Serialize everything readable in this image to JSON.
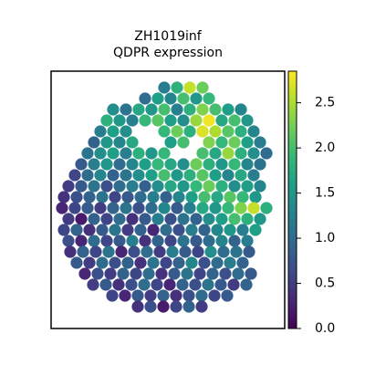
{
  "chart_data": {
    "type": "spatial_scatter",
    "title": [
      "ZH1019inf",
      "QDPR expression"
    ],
    "colormap": "viridis",
    "clim": [
      0,
      2.85
    ],
    "cticks": [
      {
        "value": 0,
        "label": "0.0"
      },
      {
        "value": 0.5,
        "label": "0.5"
      },
      {
        "value": 1,
        "label": "1.0"
      },
      {
        "value": 1.5,
        "label": "1.5"
      },
      {
        "value": 2,
        "label": "2.0"
      },
      {
        "value": 2.5,
        "label": "2.5"
      }
    ],
    "xlim": [
      0,
      256
    ],
    "ylim": [
      0,
      282
    ],
    "y_inverted": true,
    "x": [
      124,
      138,
      152,
      166,
      103,
      117,
      131,
      145,
      159,
      173,
      68,
      82,
      96,
      110,
      124,
      138,
      152,
      166,
      180,
      194,
      208,
      61,
      75,
      89,
      103,
      117,
      131,
      145,
      159,
      173,
      187,
      201,
      215,
      54,
      68,
      82,
      124,
      138,
      152,
      166,
      180,
      194,
      208,
      222,
      47,
      61,
      75,
      89,
      131,
      145,
      173,
      187,
      201,
      215,
      229,
      40,
      54,
      68,
      82,
      96,
      110,
      124,
      166,
      180,
      194,
      208,
      222,
      236,
      33,
      47,
      61,
      75,
      89,
      103,
      117,
      131,
      145,
      159,
      173,
      187,
      201,
      215,
      229,
      26,
      40,
      54,
      68,
      82,
      96,
      110,
      124,
      138,
      152,
      166,
      180,
      194,
      208,
      222,
      19,
      33,
      47,
      61,
      75,
      89,
      103,
      117,
      131,
      145,
      159,
      173,
      187,
      201,
      215,
      229,
      14,
      28,
      42,
      56,
      70,
      84,
      98,
      112,
      126,
      140,
      154,
      168,
      182,
      196,
      210,
      224,
      12,
      26,
      40,
      54,
      68,
      82,
      96,
      110,
      124,
      138,
      152,
      166,
      180,
      194,
      208,
      222,
      236,
      19,
      33,
      47,
      61,
      75,
      89,
      103,
      117,
      131,
      145,
      159,
      173,
      187,
      201,
      215,
      229,
      14,
      28,
      42,
      56,
      70,
      84,
      98,
      112,
      126,
      140,
      154,
      168,
      182,
      196,
      210,
      224,
      19,
      33,
      47,
      61,
      75,
      89,
      103,
      117,
      131,
      145,
      159,
      173,
      187,
      201,
      215,
      21,
      35,
      49,
      63,
      77,
      91,
      105,
      119,
      133,
      147,
      161,
      175,
      189,
      203,
      217,
      28,
      42,
      56,
      70,
      84,
      98,
      112,
      126,
      140,
      154,
      168,
      182,
      196,
      210,
      37,
      51,
      65,
      79,
      93,
      107,
      121,
      135,
      149,
      163,
      177,
      191,
      205,
      219,
      46,
      60,
      74,
      88,
      102,
      116,
      130,
      144,
      158,
      172,
      186,
      200,
      214,
      67,
      81,
      95,
      109,
      123,
      137,
      151,
      165,
      179,
      193,
      95,
      109,
      123,
      137,
      151,
      165
    ],
    "y": [
      18,
      18,
      18,
      18,
      30,
      30,
      30,
      30,
      30,
      30,
      42,
      42,
      42,
      42,
      42,
      42,
      42,
      42,
      42,
      42,
      42,
      54,
      54,
      54,
      54,
      54,
      54,
      54,
      54,
      54,
      54,
      54,
      54,
      66,
      66,
      66,
      66,
      66,
      66,
      66,
      66,
      66,
      66,
      66,
      78,
      78,
      78,
      78,
      78,
      78,
      78,
      78,
      78,
      78,
      78,
      90,
      90,
      90,
      90,
      90,
      90,
      90,
      90,
      90,
      90,
      90,
      90,
      90,
      102,
      102,
      102,
      102,
      102,
      102,
      102,
      102,
      102,
      102,
      102,
      102,
      102,
      102,
      102,
      114,
      114,
      114,
      114,
      114,
      114,
      114,
      114,
      114,
      114,
      114,
      114,
      114,
      114,
      114,
      126,
      126,
      126,
      126,
      126,
      126,
      126,
      126,
      126,
      126,
      126,
      126,
      126,
      126,
      126,
      126,
      138,
      138,
      138,
      138,
      138,
      138,
      138,
      138,
      138,
      138,
      138,
      138,
      138,
      138,
      138,
      138,
      150,
      150,
      150,
      150,
      150,
      150,
      150,
      150,
      150,
      150,
      150,
      150,
      150,
      150,
      150,
      150,
      150,
      162,
      162,
      162,
      162,
      162,
      162,
      162,
      162,
      162,
      162,
      162,
      162,
      162,
      162,
      162,
      162,
      174,
      174,
      174,
      174,
      174,
      174,
      174,
      174,
      174,
      174,
      174,
      174,
      174,
      174,
      174,
      174,
      186,
      186,
      186,
      186,
      186,
      186,
      186,
      186,
      186,
      186,
      186,
      186,
      186,
      186,
      186,
      198,
      198,
      198,
      198,
      198,
      198,
      198,
      198,
      198,
      198,
      198,
      198,
      198,
      198,
      198,
      210,
      210,
      210,
      210,
      210,
      210,
      210,
      210,
      210,
      210,
      210,
      210,
      210,
      210,
      222,
      222,
      222,
      222,
      222,
      222,
      222,
      222,
      222,
      222,
      222,
      222,
      222,
      222,
      234,
      234,
      234,
      234,
      234,
      234,
      234,
      234,
      234,
      234,
      234,
      234,
      234,
      246,
      246,
      246,
      246,
      246,
      246,
      246,
      246,
      246,
      246,
      258,
      258,
      258,
      258,
      258,
      258
    ],
    "values": [
      1.2,
      1.8,
      2.6,
      2.2,
      1.0,
      1.6,
      1.3,
      2.0,
      1.5,
      1.9,
      1.4,
      1.1,
      1.7,
      1.5,
      2.0,
      1.2,
      1.8,
      2.3,
      2.0,
      1.6,
      1.3,
      1.8,
      1.5,
      1.2,
      1.9,
      2.1,
      1.6,
      1.4,
      2.4,
      2.8,
      1.7,
      2.0,
      1.5,
      1.2,
      1.6,
      1.4,
      1.9,
      2.2,
      1.8,
      2.7,
      2.5,
      2.1,
      1.8,
      1.3,
      0.9,
      1.5,
      1.3,
      1.7,
      1.6,
      2.0,
      2.3,
      1.9,
      2.2,
      1.6,
      1.2,
      1.1,
      1.4,
      1.6,
      1.2,
      1.8,
      1.5,
      1.9,
      2.0,
      1.7,
      2.4,
      1.8,
      1.4,
      1.0,
      0.8,
      1.2,
      1.5,
      1.0,
      1.3,
      1.6,
      1.9,
      1.7,
      1.4,
      2.2,
      1.8,
      1.5,
      1.9,
      1.3,
      1.1,
      0.6,
      1.0,
      1.3,
      0.9,
      1.1,
      1.4,
      1.6,
      2.0,
      1.5,
      1.8,
      2.1,
      1.6,
      1.3,
      1.7,
      1.2,
      0.5,
      0.8,
      1.1,
      0.7,
      1.0,
      1.2,
      0.9,
      1.4,
      1.7,
      1.5,
      1.9,
      2.2,
      1.8,
      1.4,
      1.6,
      1.3,
      0.4,
      0.7,
      0.9,
      1.1,
      0.6,
      0.8,
      1.0,
      1.2,
      0.9,
      1.3,
      1.6,
      2.0,
      1.7,
      2.1,
      1.9,
      1.5,
      0.3,
      0.6,
      0.8,
      0.5,
      0.9,
      1.1,
      0.7,
      1.0,
      1.3,
      0.8,
      1.2,
      1.7,
      1.5,
      1.9,
      2.3,
      2.6,
      1.8,
      0.5,
      0.2,
      0.9,
      0.6,
      1.0,
      0.4,
      0.8,
      1.2,
      0.7,
      1.1,
      0.9,
      1.4,
      1.6,
      2.0,
      1.8,
      1.5,
      0.6,
      0.9,
      0.4,
      0.8,
      1.1,
      0.5,
      0.9,
      0.3,
      1.0,
      0.7,
      1.2,
      0.9,
      1.3,
      1.5,
      1.2,
      1.6,
      0.7,
      0.3,
      1.0,
      0.6,
      0.8,
      1.2,
      0.4,
      0.9,
      0.6,
      1.1,
      0.8,
      1.0,
      1.3,
      0.9,
      1.2,
      0.4,
      0.9,
      0.6,
      1.1,
      0.3,
      0.7,
      1.0,
      0.5,
      1.2,
      0.8,
      0.6,
      1.4,
      1.0,
      1.1,
      0.8,
      0.8,
      0.5,
      1.0,
      0.7,
      0.9,
      0.4,
      1.1,
      0.6,
      0.9,
      1.3,
      0.7,
      1.0,
      1.2,
      0.9,
      0.3,
      0.7,
      0.5,
      0.9,
      0.6,
      1.0,
      0.4,
      0.8,
      1.1,
      0.6,
      0.9,
      0.7,
      1.0,
      0.8,
      0.5,
      0.8,
      0.4,
      0.7,
      1.0,
      0.6,
      0.3,
      0.9,
      0.7,
      1.1,
      0.8,
      0.5,
      0.9,
      0.6,
      0.3,
      0.8,
      0.5,
      0.9,
      0.4,
      0.7,
      1.0,
      0.6,
      0.8,
      0.4,
      0.7,
      0.2,
      0.6,
      0.9,
      0.5
    ]
  }
}
